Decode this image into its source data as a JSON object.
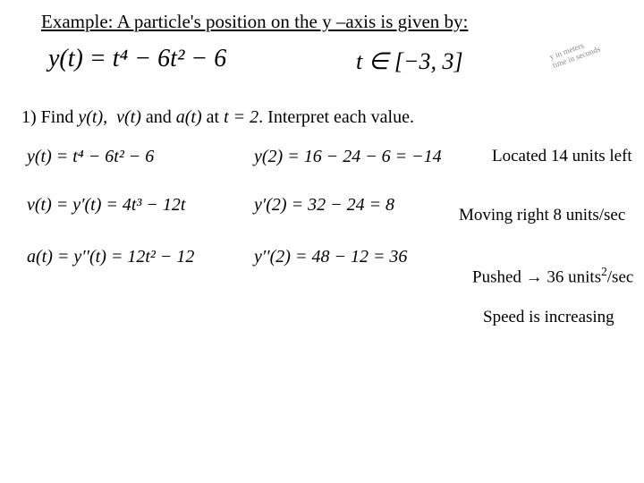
{
  "title": "Example: A particle's position on the y –axis is given by:",
  "main_equation": "y(t) = t⁴ − 6t² − 6",
  "domain_equation": "t ∈ [−3, 3]",
  "note_line1": "y in meters",
  "note_line2": "time in seconds",
  "question_prefix": "1)  Find  ",
  "q_y": "y(t),",
  "q_v": "v(t)",
  "q_and": "  and  ",
  "q_a": "a(t)",
  "q_at": "   at  ",
  "q_t2": "t = 2",
  "q_dot": ".    Interpret each value.",
  "row1_left": "y(t) = t⁴ − 6t² − 6",
  "row1_right": "y(2) = 16 − 24 − 6 = −14",
  "interp1": "Located 14 units left",
  "row2_left": "v(t) = y′(t) = 4t³ − 12t",
  "row2_right": "y′(2) = 32 − 24 = 8",
  "interp2": "Moving right 8 units/sec",
  "row3_left": "a(t) = y′′(t) = 12t² − 12",
  "row3_right": "y′′(2) = 48 − 12 = 36",
  "interp3_a": "Pushed → 36 units",
  "interp3_b": "/sec",
  "interp4": "Speed is increasing"
}
